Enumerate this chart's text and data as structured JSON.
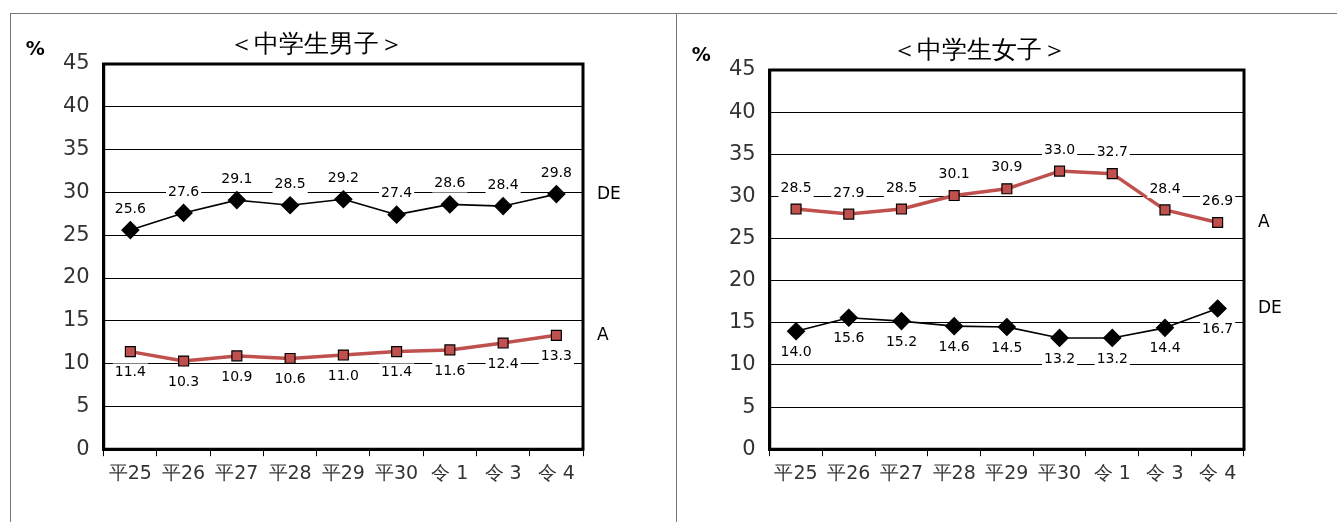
{
  "chart_data": [
    {
      "type": "line",
      "title": "＜中学生男子＞",
      "ylabel": "%",
      "categories": [
        "平25",
        "平26",
        "平27",
        "平28",
        "平29",
        "平30",
        "令 1",
        "令 3",
        "令 4"
      ],
      "series": [
        {
          "name": "DE",
          "color": "#000000",
          "marker": "diamond",
          "values": [
            25.6,
            27.6,
            29.1,
            28.5,
            29.2,
            27.4,
            28.6,
            28.4,
            29.8
          ],
          "value_labels": [
            "25.6",
            "27.6",
            "29.1",
            "28.5",
            "29.2",
            "27.4",
            "28.6",
            "28.4",
            "29.8"
          ]
        },
        {
          "name": "A",
          "color": "#c0504d",
          "marker": "square",
          "values": [
            11.4,
            10.3,
            10.9,
            10.6,
            11.0,
            11.4,
            11.6,
            12.4,
            13.3
          ],
          "value_labels": [
            "11.4",
            "10.3",
            "10.9",
            "10.6",
            "11.0",
            "11.4",
            "11.6",
            "12.4",
            "13.3"
          ]
        }
      ],
      "ylim": [
        0,
        45
      ],
      "yticks": [
        0,
        5,
        10,
        15,
        20,
        25,
        30,
        35,
        40,
        45
      ],
      "grid": "y"
    },
    {
      "type": "line",
      "title": "＜中学生女子＞",
      "ylabel": "%",
      "categories": [
        "平25",
        "平26",
        "平27",
        "平28",
        "平29",
        "平30",
        "令 1",
        "令 3",
        "令 4"
      ],
      "series": [
        {
          "name": "A",
          "color": "#c0504d",
          "marker": "square",
          "values": [
            28.5,
            27.9,
            28.5,
            30.1,
            30.9,
            33.0,
            32.7,
            28.4,
            26.9
          ],
          "value_labels": [
            "28.5",
            "27.9",
            "28.5",
            "30.1",
            "30.9",
            "33.0",
            "32.7",
            "28.4",
            "26.9"
          ]
        },
        {
          "name": "DE",
          "color": "#000000",
          "marker": "diamond",
          "values": [
            14.0,
            15.6,
            15.2,
            14.6,
            14.5,
            13.2,
            13.2,
            14.4,
            16.7
          ],
          "value_labels": [
            "14.0",
            "15.6",
            "15.2",
            "14.6",
            "14.5",
            "13.2",
            "13.2",
            "14.4",
            "16.7"
          ]
        }
      ],
      "ylim": [
        0,
        45
      ],
      "yticks": [
        0,
        5,
        10,
        15,
        20,
        25,
        30,
        35,
        40,
        45
      ],
      "grid": "y"
    }
  ]
}
